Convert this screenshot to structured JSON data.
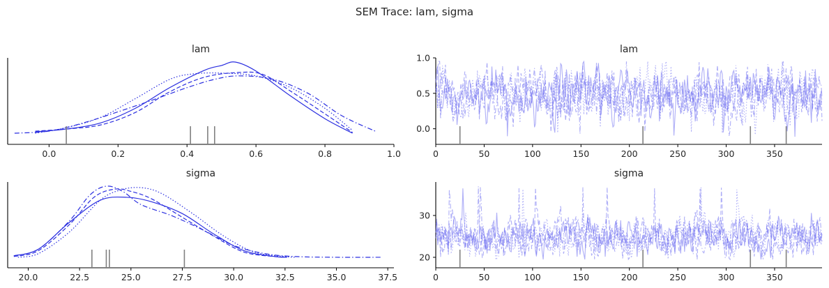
{
  "figure": {
    "title": "SEM Trace: lam, sigma"
  },
  "chart_data": [
    {
      "id": "lam-density",
      "type": "line",
      "title": "lam",
      "xlim": [
        -0.12,
        1.0
      ],
      "xticks": [
        "0.0",
        "0.2",
        "0.4",
        "0.6",
        "0.8",
        "1.0"
      ],
      "xtick_values": [
        0.0,
        0.2,
        0.4,
        0.6,
        0.8,
        1.0
      ],
      "yticks": [],
      "color": "#2a2ee0",
      "rug": [
        0.05,
        0.41,
        0.46,
        0.48
      ],
      "series": [
        {
          "style": "solid",
          "x": [
            -0.04,
            0.05,
            0.15,
            0.25,
            0.35,
            0.45,
            0.5,
            0.54,
            0.6,
            0.7,
            0.8,
            0.88
          ],
          "y": [
            0.04,
            0.08,
            0.17,
            0.38,
            0.68,
            0.93,
            1.0,
            1.05,
            0.92,
            0.56,
            0.23,
            0.02
          ]
        },
        {
          "style": "dashed",
          "x": [
            -0.04,
            0.05,
            0.15,
            0.25,
            0.35,
            0.45,
            0.55,
            0.62,
            0.7,
            0.8,
            0.88
          ],
          "y": [
            0.05,
            0.08,
            0.14,
            0.32,
            0.62,
            0.83,
            0.9,
            0.87,
            0.63,
            0.3,
            0.03
          ]
        },
        {
          "style": "dotted",
          "x": [
            -0.04,
            0.05,
            0.15,
            0.25,
            0.35,
            0.42,
            0.5,
            0.6,
            0.7,
            0.8,
            0.88
          ],
          "y": [
            0.02,
            0.1,
            0.25,
            0.52,
            0.8,
            0.88,
            0.89,
            0.85,
            0.68,
            0.38,
            0.06
          ]
        },
        {
          "style": "dashdot",
          "x": [
            -0.1,
            0.0,
            0.1,
            0.2,
            0.3,
            0.4,
            0.48,
            0.55,
            0.65,
            0.75,
            0.85,
            0.95
          ],
          "y": [
            0.02,
            0.05,
            0.17,
            0.33,
            0.5,
            0.68,
            0.8,
            0.85,
            0.8,
            0.6,
            0.27,
            0.04
          ]
        }
      ]
    },
    {
      "id": "lam-trace",
      "type": "line",
      "title": "lam",
      "xlim": [
        0,
        399
      ],
      "ylim": [
        -0.22,
        1.0
      ],
      "xticks": [
        "0",
        "50",
        "100",
        "150",
        "200",
        "250",
        "300",
        "350"
      ],
      "xtick_values": [
        0,
        50,
        100,
        150,
        200,
        250,
        300,
        350
      ],
      "yticks": [
        "0.0",
        "0.5",
        "1.0"
      ],
      "ytick_values": [
        0.0,
        0.5,
        1.0
      ],
      "color": "#6b6bf0",
      "n_draws": 400,
      "chains": 4,
      "center": 0.48,
      "spread": 0.17,
      "range": [
        -0.12,
        0.95
      ],
      "rug": [
        25,
        214,
        325,
        362
      ]
    },
    {
      "id": "sigma-density",
      "type": "line",
      "title": "sigma",
      "xlim": [
        19.0,
        37.8
      ],
      "xticks": [
        "20.0",
        "22.5",
        "25.0",
        "27.5",
        "30.0",
        "32.5",
        "35.0",
        "37.5"
      ],
      "xtick_values": [
        20.0,
        22.5,
        25.0,
        27.5,
        30.0,
        32.5,
        35.0,
        37.5
      ],
      "yticks": [],
      "color": "#2a2ee0",
      "rug": [
        23.1,
        23.8,
        23.95,
        27.6
      ],
      "series": [
        {
          "style": "solid",
          "x": [
            19.3,
            20.5,
            22.0,
            23.5,
            24.8,
            26.0,
            27.5,
            29.0,
            30.5,
            32.0,
            32.6
          ],
          "y": [
            0.03,
            0.12,
            0.48,
            0.78,
            0.82,
            0.76,
            0.6,
            0.33,
            0.1,
            0.02,
            0.01
          ]
        },
        {
          "style": "dashed",
          "x": [
            19.3,
            20.5,
            22.0,
            23.2,
            24.2,
            25.0,
            26.0,
            27.5,
            29.0,
            30.5,
            32.0,
            32.6
          ],
          "y": [
            0.02,
            0.1,
            0.45,
            0.82,
            0.93,
            0.9,
            0.8,
            0.55,
            0.3,
            0.08,
            0.02,
            0.01
          ]
        },
        {
          "style": "dotted",
          "x": [
            19.5,
            20.5,
            22.0,
            23.5,
            24.5,
            25.5,
            26.5,
            28.0,
            29.5,
            31.0,
            32.5,
            33.0
          ],
          "y": [
            0.01,
            0.06,
            0.35,
            0.78,
            0.92,
            0.95,
            0.87,
            0.6,
            0.3,
            0.08,
            0.02,
            0.01
          ]
        },
        {
          "style": "dashdot",
          "x": [
            19.3,
            20.5,
            22.0,
            23.0,
            23.8,
            24.6,
            25.5,
            27.0,
            28.5,
            30.0,
            31.5,
            33.0,
            35.0,
            37.2
          ],
          "y": [
            0.03,
            0.12,
            0.5,
            0.85,
            0.97,
            0.9,
            0.72,
            0.57,
            0.38,
            0.17,
            0.06,
            0.02,
            0.01,
            0.01
          ]
        }
      ]
    },
    {
      "id": "sigma-trace",
      "type": "line",
      "title": "sigma",
      "xlim": [
        0,
        399
      ],
      "ylim": [
        17.5,
        38.0
      ],
      "xticks": [
        "0",
        "50",
        "100",
        "150",
        "200",
        "250",
        "300",
        "350"
      ],
      "xtick_values": [
        0,
        50,
        100,
        150,
        200,
        250,
        300,
        350
      ],
      "yticks": [
        "20",
        "30"
      ],
      "ytick_values": [
        20,
        30
      ],
      "color": "#6b6bf0",
      "n_draws": 400,
      "chains": 4,
      "center": 24.9,
      "spread": 2.0,
      "range": [
        19.5,
        37.0
      ],
      "rug": [
        25,
        214,
        325,
        362
      ]
    }
  ]
}
